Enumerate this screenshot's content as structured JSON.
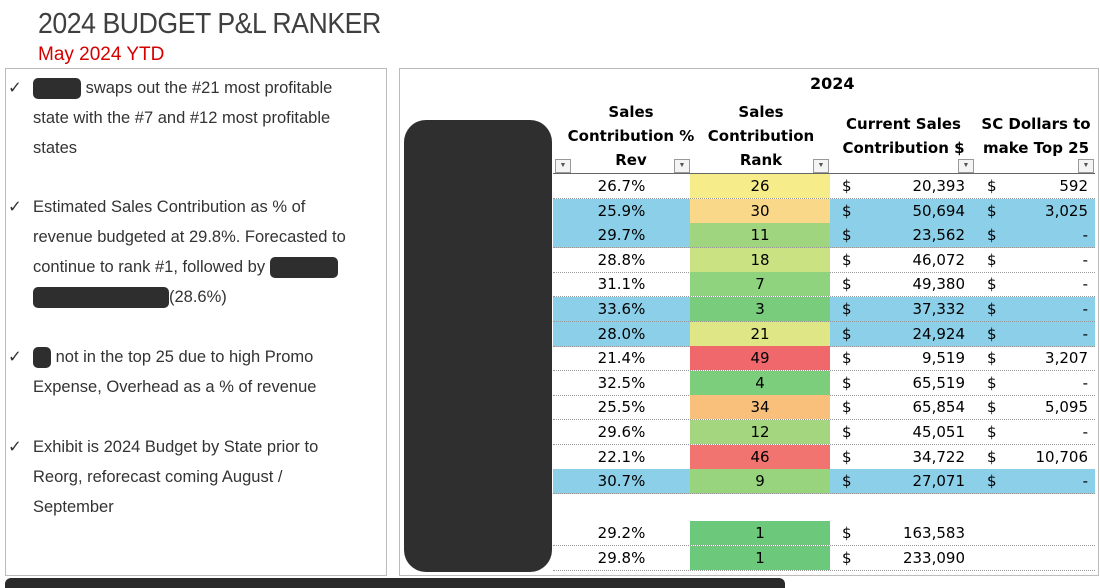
{
  "title": "2024 BUDGET P&L RANKER",
  "subtitle": "May 2024 YTD",
  "bullets": [
    {
      "lines": [
        "swaps out the #21 most profitable state with the #7 and #12 most profitable states"
      ]
    },
    {
      "text_a": "Estimated Sales Contribution as % of revenue budgeted at 29.8%. Forecasted to continue to rank #1, followed by",
      "text_b": "(28.6%)"
    },
    {
      "text": "not in the top 25 due to high Promo Expense, Overhead as a % of revenue"
    },
    {
      "text": "Exhibit is 2024 Budget by State prior to Reorg, reforecast coming August / September"
    }
  ],
  "check": "✓",
  "table": {
    "year": "2024",
    "headers": [
      "Sales Contribution % Rev",
      "Sales Contribution Rank",
      "Current Sales Contribution $",
      "SC Dollars to make Top 25"
    ],
    "colors": {
      "highlight": "#8ccfe8"
    },
    "rows": [
      {
        "pct": "26.7%",
        "rank": "26",
        "rank_color": "#f7ec8a",
        "cur": "20,393",
        "need": "592",
        "hl": false
      },
      {
        "pct": "25.9%",
        "rank": "30",
        "rank_color": "#f9d88a",
        "cur": "50,694",
        "need": "3,025",
        "hl": true
      },
      {
        "pct": "29.7%",
        "rank": "11",
        "rank_color": "#9fd57f",
        "cur": "23,562",
        "need": "-",
        "hl": true
      },
      {
        "pct": "28.8%",
        "rank": "18",
        "rank_color": "#cbe282",
        "cur": "46,072",
        "need": "-",
        "hl": false
      },
      {
        "pct": "31.1%",
        "rank": "7",
        "rank_color": "#90d37e",
        "cur": "49,380",
        "need": "-",
        "hl": false
      },
      {
        "pct": "33.6%",
        "rank": "3",
        "rank_color": "#78cc7c",
        "cur": "37,332",
        "need": "-",
        "hl": true
      },
      {
        "pct": "28.0%",
        "rank": "21",
        "rank_color": "#dfe685",
        "cur": "24,924",
        "need": "-",
        "hl": true
      },
      {
        "pct": "21.4%",
        "rank": "49",
        "rank_color": "#f0686c",
        "cur": "9,519",
        "need": "3,207",
        "hl": false
      },
      {
        "pct": "32.5%",
        "rank": "4",
        "rank_color": "#7ccd7c",
        "cur": "65,519",
        "need": "-",
        "hl": false
      },
      {
        "pct": "25.5%",
        "rank": "34",
        "rank_color": "#f9c07c",
        "cur": "65,854",
        "need": "5,095",
        "hl": false
      },
      {
        "pct": "29.6%",
        "rank": "12",
        "rank_color": "#a3d67f",
        "cur": "45,051",
        "need": "-",
        "hl": false
      },
      {
        "pct": "22.1%",
        "rank": "46",
        "rank_color": "#f27470",
        "cur": "34,722",
        "need": "10,706",
        "hl": false
      },
      {
        "pct": "30.7%",
        "rank": "9",
        "rank_color": "#98d47e",
        "cur": "27,071",
        "need": "-",
        "hl": true
      }
    ],
    "totals": [
      {
        "pct": "29.2%",
        "rank": "1",
        "rank_color": "#6cc87a",
        "cur": "163,583"
      },
      {
        "pct": "29.8%",
        "rank": "1",
        "rank_color": "#6cc87a",
        "cur": "233,090"
      }
    ],
    "currency": "$"
  }
}
